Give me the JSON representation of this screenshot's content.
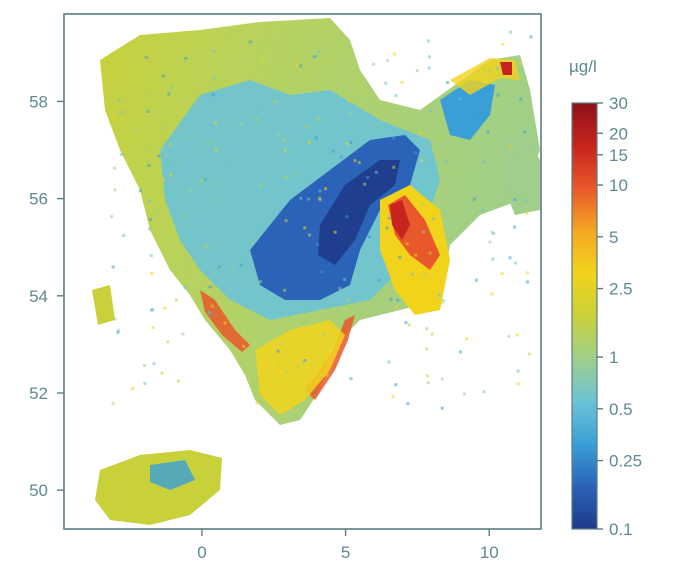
{
  "map": {
    "x_tick_labels": [
      "0",
      "5",
      "10"
    ],
    "y_tick_labels": [
      "58",
      "56",
      "54",
      "52",
      "50"
    ],
    "x_ticks": [
      0,
      5,
      10
    ],
    "y_ticks": [
      58,
      56,
      54,
      52,
      50
    ],
    "lon_range": [
      -4.8,
      11.8
    ],
    "lat_range": [
      49.2,
      59.8
    ]
  },
  "colorbar": {
    "unit": "µg/l",
    "tick_labels": [
      "30",
      "20",
      "15",
      "10",
      "5",
      "2.5",
      "1",
      "0.5",
      "0.25",
      "0.1"
    ],
    "tick_values": [
      30,
      20,
      15,
      10,
      5,
      2.5,
      1,
      0.5,
      0.25,
      0.1
    ],
    "range": [
      0.1,
      30
    ],
    "scale": "log",
    "colors": [
      "#1f3a8a",
      "#2b63b8",
      "#3a9fd6",
      "#6cc3d6",
      "#9fcf8a",
      "#c9d13a",
      "#f2d31c",
      "#f5a623",
      "#e8582a",
      "#c8241e",
      "#8c1218"
    ]
  },
  "colors": {
    "axis": "#5a7d84",
    "text": "#5e8a92",
    "background": "#ffffff"
  }
}
